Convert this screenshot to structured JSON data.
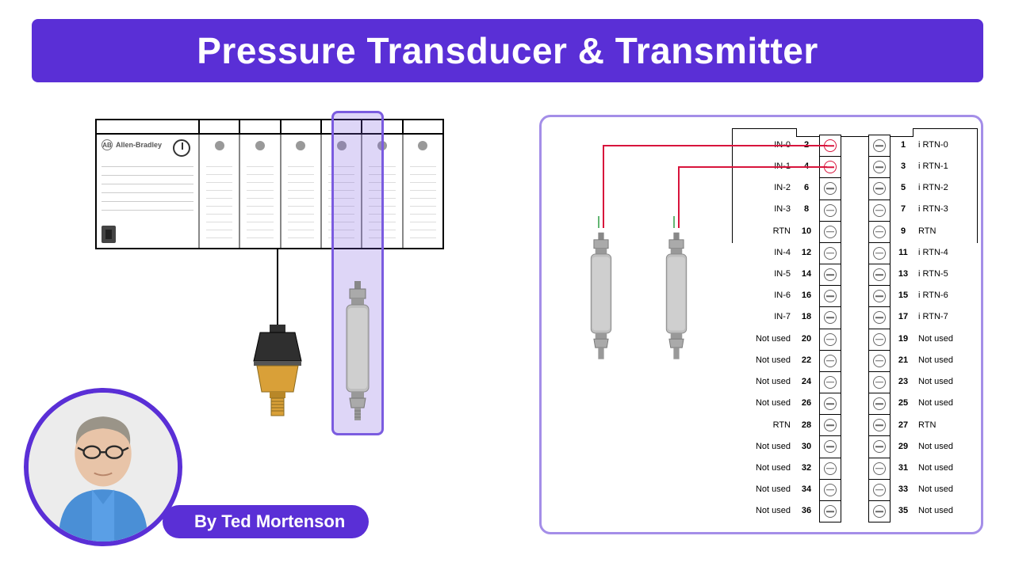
{
  "title": "Pressure Transducer & Transmitter",
  "author": "By Ted Mortenson",
  "colors": {
    "accent": "#5a2fd6",
    "title_bg": "#5a2fd6",
    "title_fg": "#ffffff",
    "panel_border": "#a48ee8",
    "highlight_border": "#7b5ce0",
    "highlight_fill": "rgba(123,92,224,0.25)",
    "wire_red": "#d8143c",
    "wire_green": "#2f9e44",
    "brass": "#d9a038",
    "sensor_body": "#bfbfbf"
  },
  "plc": {
    "brand": "Allen-Bradley",
    "num_slots": 6,
    "highlighted_slot_index": 5
  },
  "sensors": {
    "pressure_switch": {
      "body_color": "#2f2f2f",
      "fitting_color": "#d9a038"
    },
    "transmitter": {
      "body_color": "#bfbfbf",
      "highlight": true
    }
  },
  "right_panel": {
    "sensor_positions_x": [
      75,
      170
    ],
    "active_left_rows": [
      0,
      1
    ],
    "rtn_row_index": 4
  },
  "terminals": {
    "left": [
      {
        "num": 2,
        "label": "IN-0"
      },
      {
        "num": 4,
        "label": "IN-1"
      },
      {
        "num": 6,
        "label": "IN-2"
      },
      {
        "num": 8,
        "label": "IN-3"
      },
      {
        "num": 10,
        "label": "RTN"
      },
      {
        "num": 12,
        "label": "IN-4"
      },
      {
        "num": 14,
        "label": "IN-5"
      },
      {
        "num": 16,
        "label": "IN-6"
      },
      {
        "num": 18,
        "label": "IN-7"
      },
      {
        "num": 20,
        "label": "Not used"
      },
      {
        "num": 22,
        "label": "Not used"
      },
      {
        "num": 24,
        "label": "Not used"
      },
      {
        "num": 26,
        "label": "Not used"
      },
      {
        "num": 28,
        "label": "RTN"
      },
      {
        "num": 30,
        "label": "Not used"
      },
      {
        "num": 32,
        "label": "Not used"
      },
      {
        "num": 34,
        "label": "Not used"
      },
      {
        "num": 36,
        "label": "Not used"
      }
    ],
    "right": [
      {
        "num": 1,
        "label": "i RTN-0"
      },
      {
        "num": 3,
        "label": "i RTN-1"
      },
      {
        "num": 5,
        "label": "i RTN-2"
      },
      {
        "num": 7,
        "label": "i RTN-3"
      },
      {
        "num": 9,
        "label": "RTN"
      },
      {
        "num": 11,
        "label": "i RTN-4"
      },
      {
        "num": 13,
        "label": "i RTN-5"
      },
      {
        "num": 15,
        "label": "i RTN-6"
      },
      {
        "num": 17,
        "label": "i RTN-7"
      },
      {
        "num": 19,
        "label": "Not used"
      },
      {
        "num": 21,
        "label": "Not used"
      },
      {
        "num": 23,
        "label": "Not used"
      },
      {
        "num": 25,
        "label": "Not used"
      },
      {
        "num": 27,
        "label": "RTN"
      },
      {
        "num": 29,
        "label": "Not used"
      },
      {
        "num": 31,
        "label": "Not used"
      },
      {
        "num": 33,
        "label": "Not used"
      },
      {
        "num": 35,
        "label": "Not used"
      }
    ]
  }
}
